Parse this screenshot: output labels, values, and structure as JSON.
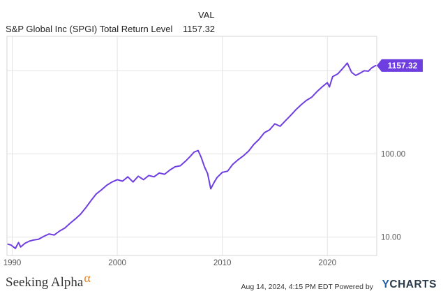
{
  "header": {
    "column_label": "VAL",
    "series_name": "S&P Global Inc (SPGI) Total Return Level",
    "series_value": "1157.32"
  },
  "footer": {
    "brand_name": "Seeking Alpha",
    "brand_symbol": "α",
    "timestamp": "Aug 14, 2024, 4:15 PM EDT",
    "powered_by": "Powered by",
    "provider_y": "Y",
    "provider_rest": "CHARTS"
  },
  "colors": {
    "line": "#6e3ee0",
    "grid": "#e4e4e4",
    "end_label_bg": "#6e3ee0"
  },
  "chart_data": {
    "type": "line",
    "title": "",
    "y_scale": "log",
    "ylim": [
      6,
      2600
    ],
    "xlim": [
      1989.5,
      2024.7
    ],
    "y_ticks": [
      10,
      100,
      1000
    ],
    "y_tick_labels": [
      "10.00",
      "100.00",
      ""
    ],
    "x_ticks": [
      1990,
      2000,
      2010,
      2020
    ],
    "x_tick_labels": [
      "1990",
      "2000",
      "2010",
      "2020"
    ],
    "grid": true,
    "end_label": "1157.32",
    "series": [
      {
        "name": "S&P Global Inc (SPGI) Total Return Level",
        "x": [
          1989.6,
          1989.9,
          1990.3,
          1990.6,
          1990.8,
          1991.2,
          1991.6,
          1992.0,
          1992.5,
          1993.0,
          1993.5,
          1994.0,
          1994.5,
          1995.0,
          1995.5,
          1996.0,
          1996.5,
          1997.0,
          1997.5,
          1998.0,
          1998.5,
          1999.0,
          1999.5,
          2000.0,
          2000.5,
          2001.0,
          2001.5,
          2002.0,
          2002.5,
          2003.0,
          2003.5,
          2004.0,
          2004.5,
          2005.0,
          2005.5,
          2006.0,
          2006.5,
          2007.0,
          2007.3,
          2007.7,
          2008.0,
          2008.3,
          2008.6,
          2008.9,
          2009.2,
          2009.5,
          2010.0,
          2010.5,
          2011.0,
          2011.5,
          2012.0,
          2012.5,
          2013.0,
          2013.5,
          2014.0,
          2014.5,
          2015.0,
          2015.5,
          2016.0,
          2016.5,
          2017.0,
          2017.5,
          2018.0,
          2018.5,
          2019.0,
          2019.5,
          2020.0,
          2020.2,
          2020.5,
          2021.0,
          2021.5,
          2021.9,
          2022.3,
          2022.7,
          2023.0,
          2023.5,
          2023.9,
          2024.2,
          2024.6
        ],
        "values": [
          8.2,
          8.0,
          7.3,
          8.6,
          7.6,
          8.4,
          8.9,
          9.2,
          9.4,
          10.2,
          10.9,
          10.6,
          11.8,
          12.8,
          14.6,
          16.5,
          18.8,
          22.5,
          27.5,
          33.0,
          37.0,
          42.0,
          46.0,
          49.0,
          47.0,
          53.0,
          46.0,
          54.0,
          49.0,
          55.0,
          53.0,
          59.0,
          57.0,
          64.0,
          70.0,
          72.0,
          82.0,
          95.0,
          105.0,
          110.0,
          90.0,
          70.0,
          58.0,
          38.0,
          45.0,
          52.0,
          60.0,
          62.0,
          75.0,
          85.0,
          95.0,
          108.0,
          130.0,
          150.0,
          180.0,
          195.0,
          230.0,
          215.0,
          250.0,
          290.0,
          340.0,
          390.0,
          440.0,
          480.0,
          560.0,
          640.0,
          720.0,
          640.0,
          850.0,
          920.0,
          1080.0,
          1240.0,
          960.0,
          880.0,
          920.0,
          1000.0,
          990.0,
          1080.0,
          1157.32
        ]
      }
    ]
  }
}
